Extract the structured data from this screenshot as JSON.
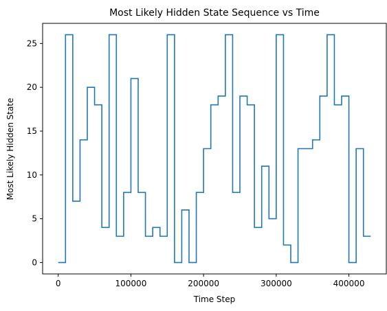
{
  "chart_data": {
    "type": "line",
    "drawstyle": "steps-post",
    "title": "Most Likely Hidden State Sequence vs Time",
    "xlabel": "Time Step",
    "ylabel": "Most Likely Hidden State",
    "xlim": [
      -21500,
      451500
    ],
    "ylim": [
      -1.3,
      27.3
    ],
    "xticks": [
      0,
      100000,
      200000,
      300000,
      400000
    ],
    "yticks": [
      0,
      5,
      10,
      15,
      20,
      25
    ],
    "grid": false,
    "legend": false,
    "color": "#1f77b4",
    "series": [
      {
        "x": [
          0,
          10000,
          20000,
          30000,
          40000,
          50000,
          60000,
          70000,
          80000,
          90000,
          100000,
          110000,
          120000,
          130000,
          140000,
          150000,
          160000,
          170000,
          180000,
          190000,
          200000,
          210000,
          220000,
          230000,
          240000,
          250000,
          260000,
          270000,
          280000,
          290000,
          300000,
          310000,
          320000,
          330000,
          340000,
          350000,
          360000,
          370000,
          380000,
          390000,
          400000,
          410000,
          420000,
          430000
        ],
        "y": [
          0,
          26,
          7,
          14,
          20,
          18,
          4,
          26,
          3,
          8,
          21,
          8,
          3,
          4,
          3,
          26,
          0,
          6,
          0,
          8,
          13,
          18,
          19,
          26,
          8,
          19,
          18,
          4,
          11,
          5,
          26,
          2,
          0,
          13,
          13,
          14,
          19,
          26,
          18,
          19,
          0,
          13,
          3,
          3
        ]
      }
    ]
  }
}
